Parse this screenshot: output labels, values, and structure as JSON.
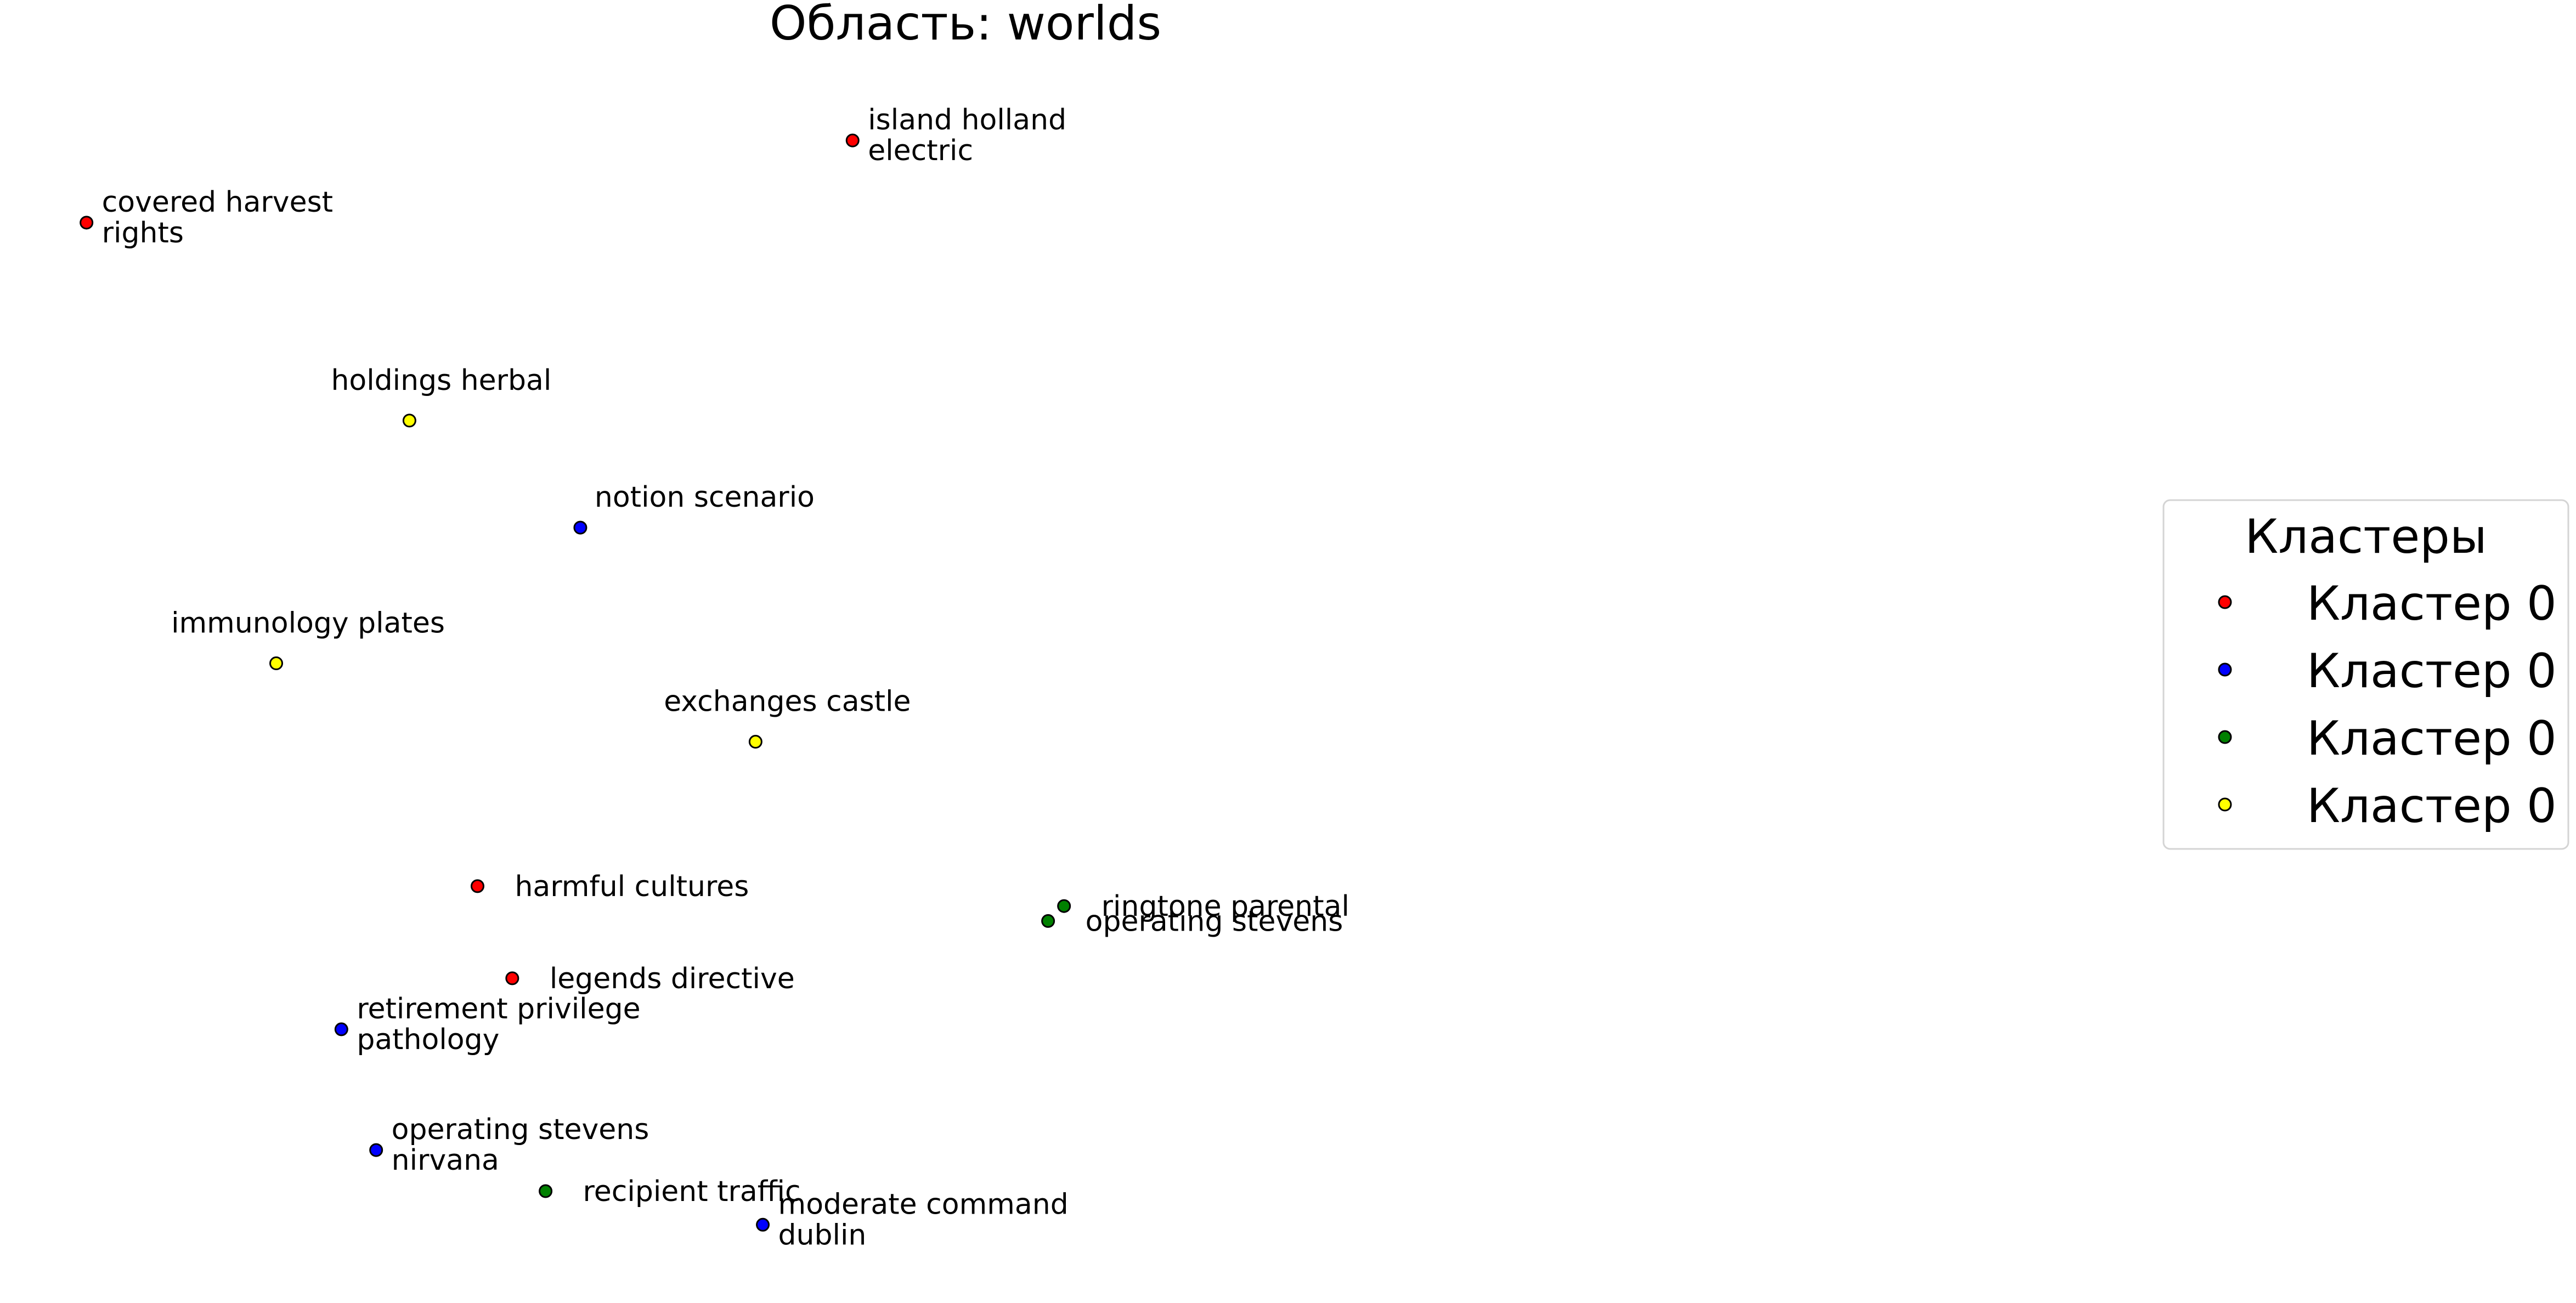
{
  "chart_data": {
    "type": "scatter",
    "title": "Область: worlds",
    "xlabel": "",
    "ylabel": "",
    "axes_visible": false,
    "grid": false,
    "xlim": [
      0,
      100
    ],
    "ylim": [
      0,
      100
    ],
    "legend": {
      "title": "Кластеры",
      "placement": "center-right",
      "entries": [
        {
          "label": "Кластер 0",
          "color": "#ff0000"
        },
        {
          "label": "Кластер 0",
          "color": "#0000ff"
        },
        {
          "label": "Кластер 0",
          "color": "#008000"
        },
        {
          "label": "Кластер 0",
          "color": "#ffff00"
        }
      ]
    },
    "points": [
      {
        "lines": [
          "covered harvest",
          "rights"
        ],
        "x": 3.7,
        "y": 85.2,
        "color": "#ff0000",
        "label_pos": "right"
      },
      {
        "lines": [
          "island holland",
          "electric"
        ],
        "x": 56.6,
        "y": 91.8,
        "color": "#ff0000",
        "label_pos": "right"
      },
      {
        "lines": [
          "holdings herbal"
        ],
        "x": 26.0,
        "y": 69.3,
        "color": "#ffff00",
        "label_pos": "above"
      },
      {
        "lines": [
          "notion scenario"
        ],
        "x": 37.8,
        "y": 60.7,
        "color": "#0000ff",
        "label_pos": "above-right"
      },
      {
        "lines": [
          "immunology plates"
        ],
        "x": 16.8,
        "y": 49.8,
        "color": "#ffff00",
        "label_pos": "above"
      },
      {
        "lines": [
          "exchanges castle"
        ],
        "x": 49.9,
        "y": 43.5,
        "color": "#ffff00",
        "label_pos": "above"
      },
      {
        "lines": [
          "harmful cultures"
        ],
        "x": 30.7,
        "y": 31.9,
        "color": "#ff0000",
        "label_pos": "right"
      },
      {
        "lines": [
          "ringtone parental"
        ],
        "x": 71.2,
        "y": 30.3,
        "color": "#008000",
        "label_pos": "right"
      },
      {
        "lines": [
          "operating stevens"
        ],
        "x": 70.1,
        "y": 29.1,
        "color": "#008000",
        "label_pos": "right"
      },
      {
        "lines": [
          "legends directive"
        ],
        "x": 33.1,
        "y": 24.5,
        "color": "#ff0000",
        "label_pos": "right"
      },
      {
        "lines": [
          "retirement privilege",
          "pathology"
        ],
        "x": 21.3,
        "y": 20.4,
        "color": "#0000ff",
        "label_pos": "right"
      },
      {
        "lines": [
          "operating stevens",
          "nirvana"
        ],
        "x": 23.7,
        "y": 10.7,
        "color": "#0000ff",
        "label_pos": "right"
      },
      {
        "lines": [
          "recipient traffic"
        ],
        "x": 35.4,
        "y": 7.4,
        "color": "#008000",
        "label_pos": "right"
      },
      {
        "lines": [
          "moderate command",
          "dublin"
        ],
        "x": 50.4,
        "y": 4.7,
        "color": "#0000ff",
        "label_pos": "right"
      }
    ]
  }
}
